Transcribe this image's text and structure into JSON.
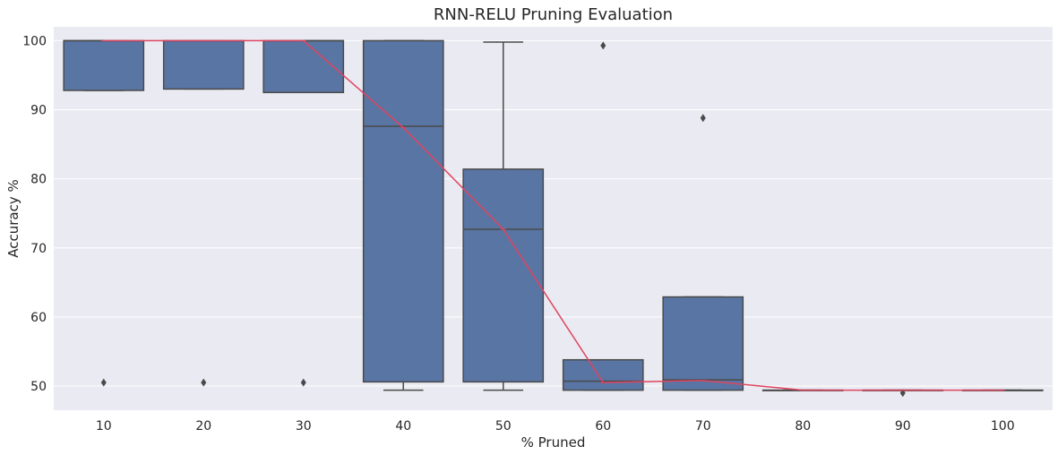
{
  "chart_data": {
    "type": "box",
    "title": "RNN-RELU Pruning Evaluation",
    "xlabel": "% Pruned",
    "ylabel": "Accuracy %",
    "categories": [
      "10",
      "20",
      "30",
      "40",
      "50",
      "60",
      "70",
      "80",
      "90",
      "100"
    ],
    "yticks": [
      "50",
      "60",
      "70",
      "80",
      "90",
      "100"
    ],
    "ylim": [
      46.5,
      102
    ],
    "grid": true,
    "boxes": [
      {
        "category": "10",
        "whisker_low": 92.8,
        "q1": 92.8,
        "median": 100.0,
        "q3": 100.0,
        "whisker_high": 100.0,
        "outliers": [
          50.5
        ]
      },
      {
        "category": "20",
        "whisker_low": 93.0,
        "q1": 93.0,
        "median": 100.0,
        "q3": 100.0,
        "whisker_high": 100.0,
        "outliers": [
          50.5
        ]
      },
      {
        "category": "30",
        "whisker_low": 92.5,
        "q1": 92.5,
        "median": 100.0,
        "q3": 100.0,
        "whisker_high": 100.0,
        "outliers": [
          50.5
        ]
      },
      {
        "category": "40",
        "whisker_low": 49.4,
        "q1": 50.6,
        "median": 87.6,
        "q3": 100.0,
        "whisker_high": 100.0,
        "outliers": []
      },
      {
        "category": "50",
        "whisker_low": 49.4,
        "q1": 50.6,
        "median": 72.7,
        "q3": 81.4,
        "whisker_high": 99.8,
        "outliers": []
      },
      {
        "category": "60",
        "whisker_low": 49.4,
        "q1": 49.4,
        "median": 50.7,
        "q3": 53.8,
        "whisker_high": 53.8,
        "outliers": [
          99.3
        ]
      },
      {
        "category": "70",
        "whisker_low": 49.4,
        "q1": 49.4,
        "median": 50.9,
        "q3": 62.9,
        "whisker_high": 62.9,
        "outliers": [
          88.8
        ]
      },
      {
        "category": "80",
        "whisker_low": 49.4,
        "q1": 49.4,
        "median": 49.4,
        "q3": 49.4,
        "whisker_high": 49.4,
        "outliers": []
      },
      {
        "category": "90",
        "whisker_low": 49.4,
        "q1": 49.4,
        "median": 49.4,
        "q3": 49.4,
        "whisker_high": 49.4,
        "outliers": [
          49.0
        ]
      },
      {
        "category": "100",
        "whisker_low": 49.4,
        "q1": 49.4,
        "median": 49.4,
        "q3": 49.4,
        "whisker_high": 49.4,
        "outliers": []
      }
    ],
    "mean_line": {
      "values": [
        100.0,
        100.0,
        100.0,
        87.4,
        72.7,
        50.5,
        50.8,
        49.4,
        49.4,
        49.4
      ],
      "color": "#e0445f"
    },
    "colors": {
      "box_fill": "#5975a4",
      "box_edge": "#4a4a4a",
      "background": "#eaeaf2",
      "grid": "#ffffff",
      "text": "#262626"
    }
  }
}
